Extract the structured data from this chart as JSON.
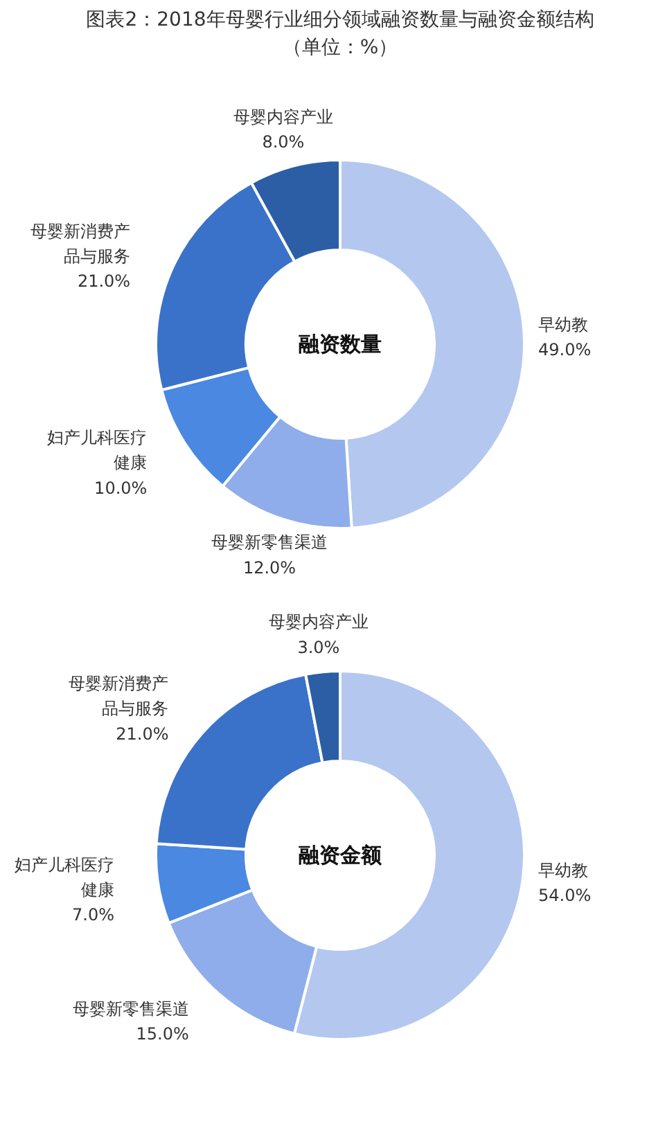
{
  "chart_data": [
    {
      "type": "donut",
      "title": "图表2：2018年母婴行业细分领域融资数量与融资金额结构（单位：%）",
      "annotations": [
        "融资数量"
      ],
      "categories": [
        "早幼教",
        "母婴新零售渠道",
        "妇产儿科医疗健康",
        "母婴新消费产品与服务",
        "母婴内容产业"
      ],
      "values": [
        49.0,
        12.0,
        10.0,
        21.0,
        8.0
      ],
      "value_labels": [
        "49.0%",
        "12.0%",
        "10.0%",
        "21.0%",
        "8.0%"
      ],
      "colors": [
        "#b4c7ef",
        "#8eadea",
        "#4a88e2",
        "#3a72c9",
        "#2c5ea6"
      ],
      "legend": false
    },
    {
      "type": "donut",
      "annotations": [
        "融资金额"
      ],
      "categories": [
        "早幼教",
        "母婴新零售渠道",
        "妇产儿科医疗健康",
        "母婴新消费产品与服务",
        "母婴内容产业"
      ],
      "values": [
        54.0,
        15.0,
        7.0,
        21.0,
        3.0
      ],
      "value_labels": [
        "54.0%",
        "15.0%",
        "7.0%",
        "21.0%",
        "3.0%"
      ],
      "colors": [
        "#b4c7ef",
        "#8eadea",
        "#4a88e2",
        "#3a72c9",
        "#2c5ea6"
      ],
      "legend": false
    }
  ]
}
